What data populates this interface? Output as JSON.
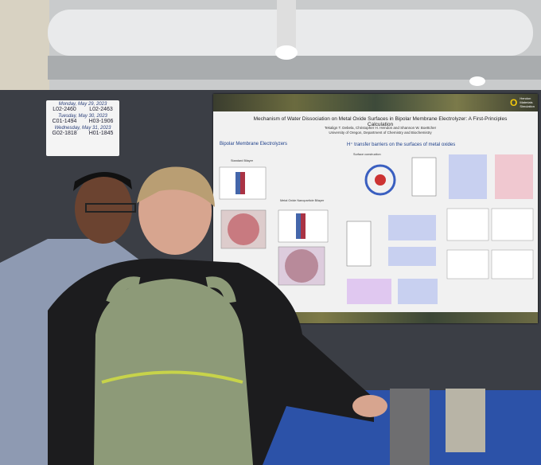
{
  "schedule": {
    "days": [
      {
        "date": "Monday, May 29, 2023",
        "codes": [
          "L02-2460",
          "L02-2463"
        ]
      },
      {
        "date": "Tuesday, May 30, 2023",
        "codes": [
          "C01-1494",
          "H03-1906"
        ]
      },
      {
        "date": "Wednesday, May 31, 2023",
        "codes": [
          "G02-1818",
          "H01-1845"
        ]
      }
    ]
  },
  "poster": {
    "title": "Mechanism of Water Dissociation on Metal Oxide Surfaces in Bipolar Membrane Electrolyzer: A First-Principles Calculation",
    "authors": "Tekalign T. Debela, Christopher H. Hendon and Shannon W. Boettcher",
    "affiliation": "University of Oregon, Department of Chemistry and Biochemistry",
    "logo": {
      "mark": "O",
      "lines": [
        "Hendon",
        "Materials",
        "Simulation"
      ]
    },
    "sections": [
      "Bipolar Membrane Electrolyzers",
      "H⁺ transfer barriers on the surfaces of metal oxides"
    ],
    "labels": [
      "Standard Bilayer",
      "Metal Oxide Nanoparticle Bilayer",
      "Surface construction"
    ]
  }
}
